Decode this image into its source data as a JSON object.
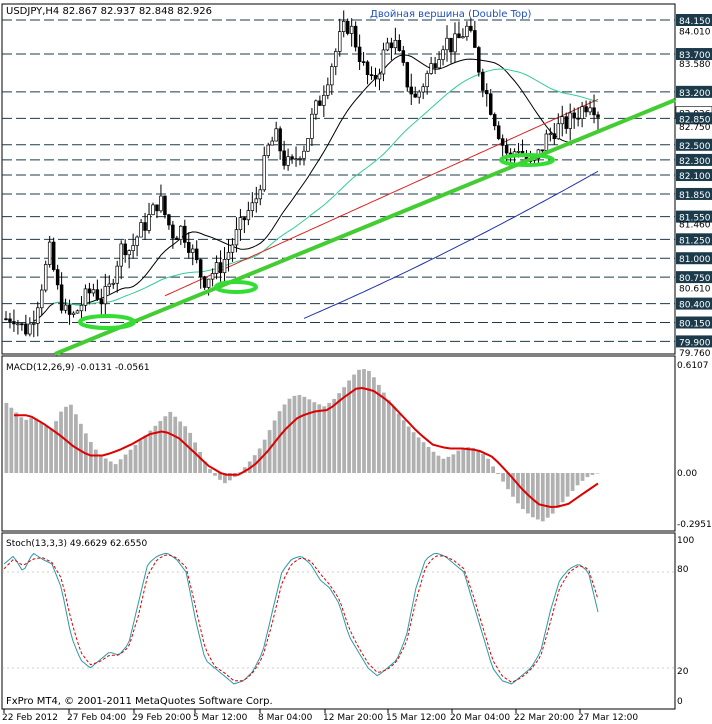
{
  "colors": {
    "background": "#ffffff",
    "frame": "#000000",
    "grid": "#1b3b4b",
    "candle": "#000000",
    "trendline": "#44cc33",
    "ellipse": "#33dd33",
    "ma_black": "#000000",
    "ma_aqua": "#33cc99",
    "ma_red": "#dd2222",
    "ma_blue": "#2233aa",
    "macd_hist": "#b0b0b0",
    "macd_signal": "#dd0000",
    "stoch_main": "#2a9aa8",
    "stoch_signal": "#dd0000",
    "title_text": "#000000",
    "annot_text": "#1f4fbf",
    "label_bg_dark": "#1b3b4b",
    "label_bg_light": "#ffffff"
  },
  "header": {
    "title": "USDJPY,H4  82.867 82.937 82.848 82.926",
    "annotation": "Двойная вершина (Double Top)"
  },
  "macd": {
    "title": "MACD(12,26,9) -0.0131 -0.0561",
    "levels": [
      "0.6107",
      "0.00",
      "-0.2951"
    ]
  },
  "stoch": {
    "title": "Stoch(13,3,3) 49.6629 62.6550",
    "levels": [
      "100",
      "80",
      "20",
      "0"
    ]
  },
  "footer": {
    "copyright": "FxPro MT4, © 2001-2011 MetaQuotes Software Corp.",
    "time_labels": [
      "22 Feb 2012",
      "27 Feb 04:00",
      "29 Feb 20:00",
      "5 Mar 12:00",
      "8 Mar 04:00",
      "12 Mar 20:00",
      "15 Mar 12:00",
      "20 Mar 04:00",
      "22 Mar 20:00",
      "27 Mar 12:00"
    ]
  },
  "chart_data": {
    "type": "candlestick",
    "symbol": "USDJPY",
    "timeframe": "H4",
    "ohlc_current": {
      "open": 82.867,
      "high": 82.937,
      "low": 82.848,
      "close": 82.926
    },
    "ylim": [
      79.76,
      84.15
    ],
    "price_labels": [
      {
        "value": 84.15,
        "text": "84.150",
        "style": "box"
      },
      {
        "value": 84.01,
        "text": "84.010",
        "style": "plain"
      },
      {
        "value": 83.7,
        "text": "83.700",
        "style": "box"
      },
      {
        "value": 83.58,
        "text": "83.580",
        "style": "plain"
      },
      {
        "value": 83.2,
        "text": "83.200",
        "style": "box"
      },
      {
        "value": 82.926,
        "text": "82.926",
        "style": "current"
      },
      {
        "value": 82.85,
        "text": "82.850",
        "style": "box"
      },
      {
        "value": 82.75,
        "text": "82.750",
        "style": "plain"
      },
      {
        "value": 82.5,
        "text": "82.500",
        "style": "box"
      },
      {
        "value": 82.3,
        "text": "82.300",
        "style": "box"
      },
      {
        "value": 82.1,
        "text": "82.100",
        "style": "box"
      },
      {
        "value": 81.85,
        "text": "81.850",
        "style": "box"
      },
      {
        "value": 81.55,
        "text": "81.550",
        "style": "box"
      },
      {
        "value": 81.46,
        "text": "81.460",
        "style": "plain"
      },
      {
        "value": 81.25,
        "text": "81.250",
        "style": "box"
      },
      {
        "value": 81.0,
        "text": "81.000",
        "style": "box"
      },
      {
        "value": 80.75,
        "text": "80.750",
        "style": "box"
      },
      {
        "value": 80.61,
        "text": "80.610",
        "style": "plain"
      },
      {
        "value": 80.4,
        "text": "80.400",
        "style": "box"
      },
      {
        "value": 80.15,
        "text": "80.150",
        "style": "box"
      },
      {
        "value": 79.9,
        "text": "79.900",
        "style": "box"
      },
      {
        "value": 79.76,
        "text": "79.760",
        "style": "plain"
      }
    ],
    "close_path": [
      80.2,
      80.25,
      80.1,
      80.05,
      80.3,
      80.7,
      81.1,
      80.6,
      80.3,
      80.2,
      80.35,
      80.5,
      80.6,
      80.45,
      80.55,
      80.9,
      81.2,
      81.1,
      81.3,
      81.45,
      81.6,
      81.8,
      81.5,
      81.3,
      81.4,
      81.2,
      80.95,
      80.7,
      80.8,
      80.85,
      81.0,
      81.2,
      81.4,
      81.6,
      81.7,
      82.1,
      82.5,
      82.6,
      82.3,
      82.2,
      82.4,
      82.5,
      82.9,
      83.1,
      83.4,
      83.7,
      84.0,
      84.1,
      83.8,
      83.5,
      83.3,
      83.5,
      83.8,
      83.9,
      83.6,
      83.3,
      83.1,
      83.3,
      83.5,
      83.7,
      83.9,
      83.8,
      83.9,
      84.05,
      83.8,
      83.4,
      83.1,
      82.8,
      82.5,
      82.3,
      82.5,
      82.3,
      82.2,
      82.4,
      82.6,
      82.7,
      82.75,
      82.8,
      82.9,
      83.0,
      83.1,
      82.926
    ],
    "macd_hist_path": [
      0.4,
      0.35,
      0.3,
      0.32,
      0.28,
      0.25,
      0.35,
      0.4,
      0.3,
      0.2,
      0.12,
      0.08,
      0.05,
      0.1,
      0.15,
      0.2,
      0.25,
      0.3,
      0.35,
      0.3,
      0.25,
      0.15,
      0.05,
      -0.02,
      -0.06,
      -0.03,
      0.02,
      0.08,
      0.15,
      0.25,
      0.35,
      0.42,
      0.45,
      0.43,
      0.4,
      0.38,
      0.42,
      0.48,
      0.55,
      0.6,
      0.58,
      0.5,
      0.42,
      0.35,
      0.28,
      0.22,
      0.17,
      0.12,
      0.08,
      0.1,
      0.14,
      0.15,
      0.13,
      0.08,
      0.0,
      -0.08,
      -0.16,
      -0.22,
      -0.26,
      -0.28,
      -0.24,
      -0.18,
      -0.12,
      -0.06,
      -0.02,
      0.0
    ],
    "macd_signal_path": [
      0.33,
      0.33,
      0.28,
      0.22,
      0.15,
      0.1,
      0.1,
      0.13,
      0.17,
      0.22,
      0.24,
      0.2,
      0.12,
      0.04,
      -0.01,
      -0.01,
      0.04,
      0.13,
      0.24,
      0.32,
      0.35,
      0.36,
      0.43,
      0.49,
      0.47,
      0.41,
      0.32,
      0.23,
      0.16,
      0.14,
      0.14,
      0.13,
      0.09,
      0.0,
      -0.1,
      -0.18,
      -0.2,
      -0.18,
      -0.12,
      -0.06
    ],
    "stoch_main_path": [
      85,
      90,
      80,
      92,
      88,
      85,
      70,
      40,
      25,
      20,
      25,
      30,
      28,
      35,
      60,
      85,
      90,
      92,
      88,
      80,
      50,
      25,
      20,
      15,
      10,
      12,
      18,
      30,
      55,
      80,
      88,
      90,
      85,
      75,
      70,
      60,
      40,
      30,
      20,
      15,
      20,
      25,
      40,
      70,
      88,
      92,
      90,
      85,
      80,
      60,
      40,
      20,
      12,
      10,
      15,
      20,
      30,
      55,
      75,
      82,
      85,
      80,
      55
    ],
    "stoch_signal_path": [
      82,
      88,
      84,
      88,
      89,
      86,
      76,
      50,
      30,
      22,
      24,
      28,
      28,
      33,
      52,
      78,
      88,
      91,
      89,
      83,
      58,
      32,
      21,
      17,
      12,
      12,
      17,
      27,
      48,
      73,
      85,
      89,
      87,
      79,
      72,
      63,
      45,
      33,
      23,
      17,
      19,
      24,
      36,
      62,
      83,
      90,
      90,
      87,
      82,
      65,
      45,
      25,
      15,
      11,
      14,
      19,
      27,
      48,
      70,
      80,
      84,
      82,
      63
    ]
  }
}
